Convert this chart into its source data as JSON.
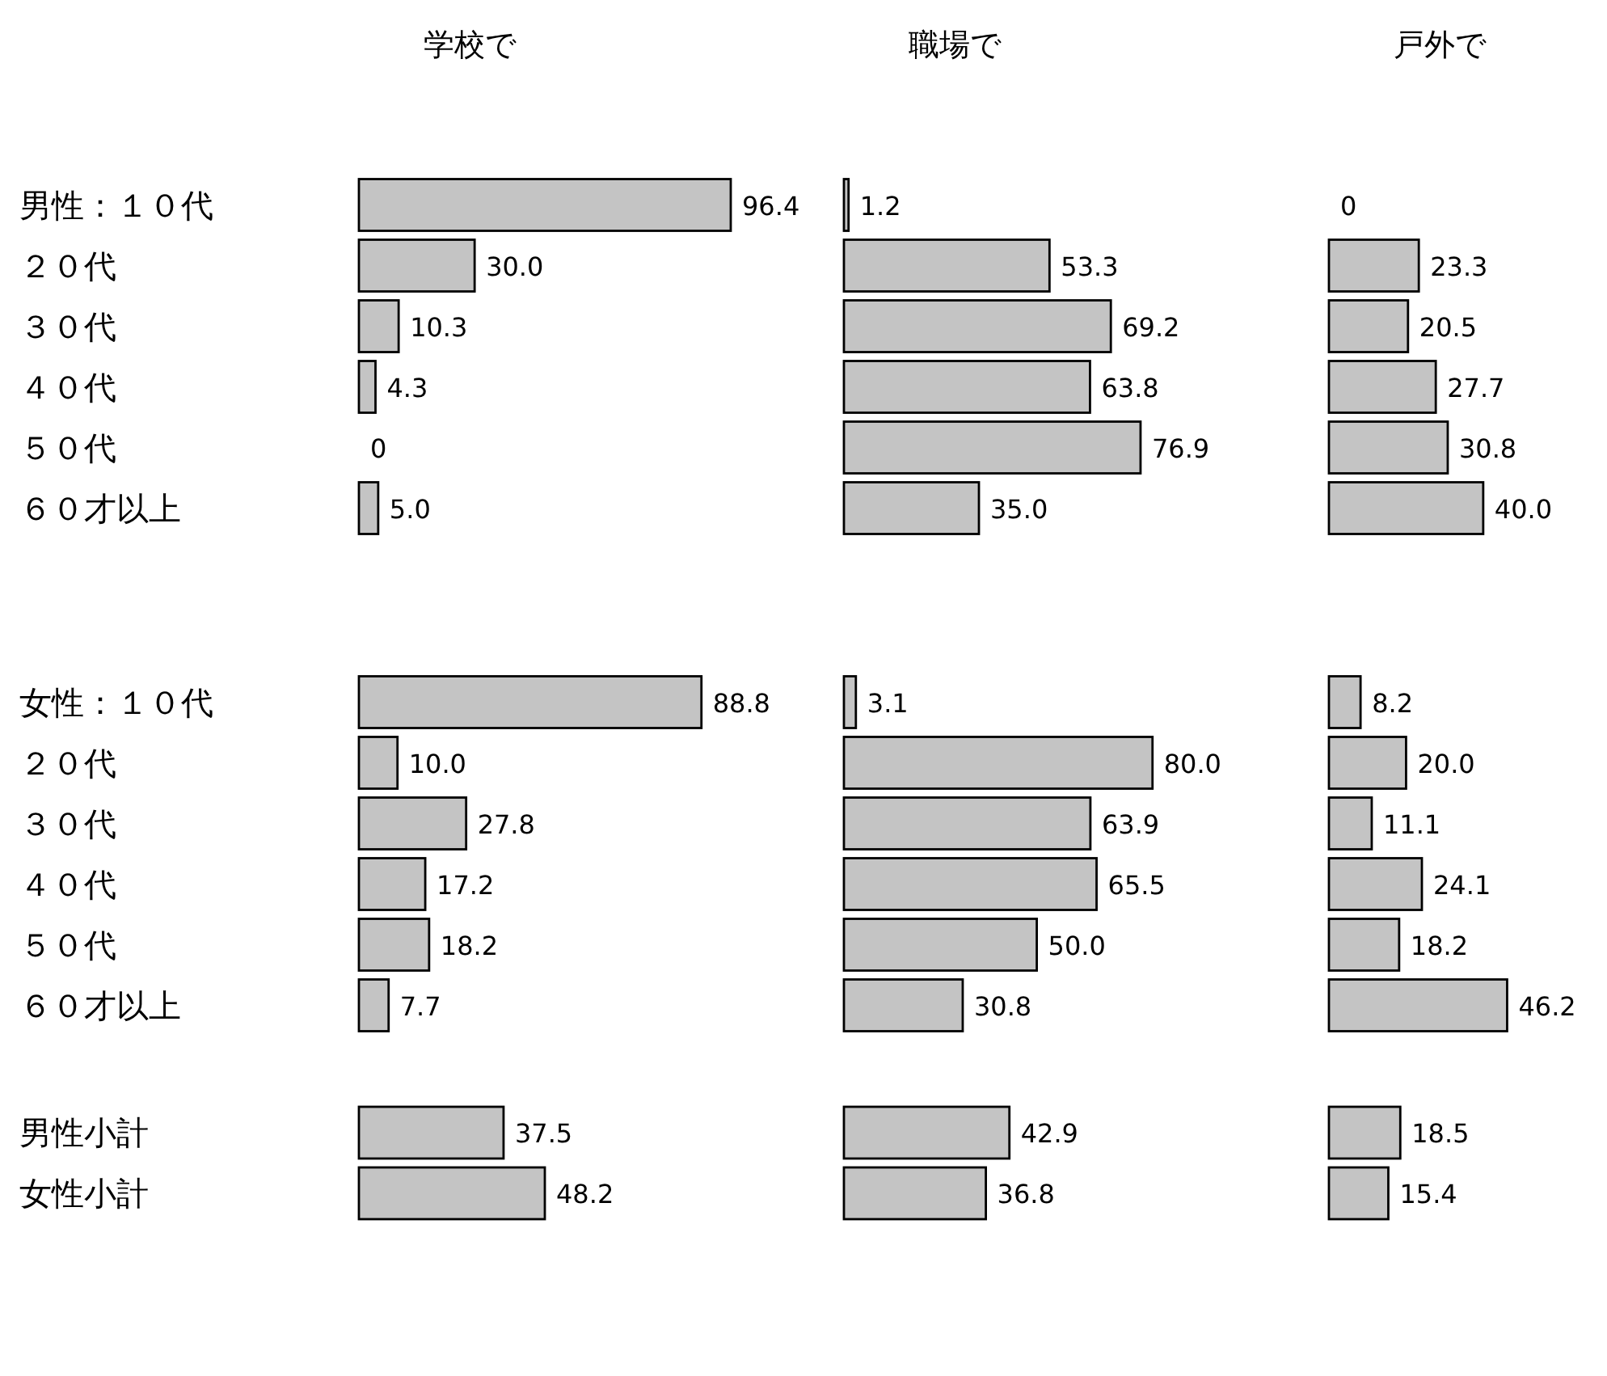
{
  "chart_data": [
    {
      "type": "bar",
      "orientation": "horizontal",
      "title": "学校で",
      "tick_labels": "y",
      "color": "#c4c4c4",
      "categories": [
        "男性：１０代",
        "２０代",
        "３０代",
        "４０代",
        "５０代",
        "６０才以上",
        null,
        null,
        "女性：１０代",
        "２０代",
        "３０代",
        "４０代",
        "５０代",
        "６０才以上",
        null,
        "男性小計",
        "女性小計"
      ],
      "values": [
        96.4,
        30.0,
        10.3,
        4.3,
        0,
        5.0,
        null,
        null,
        88.8,
        10.0,
        27.8,
        17.2,
        18.2,
        7.7,
        null,
        37.5,
        48.2
      ],
      "value_labels": [
        "96.4",
        "30.0",
        "10.3",
        "4.3",
        "0",
        "5.0",
        null,
        null,
        "88.8",
        "10.0",
        "27.8",
        "17.2",
        "18.2",
        "7.7",
        null,
        "37.5",
        "48.2"
      ]
    },
    {
      "type": "bar",
      "orientation": "horizontal",
      "title": "職場で",
      "tick_labels": false,
      "color": "#c4c4c4",
      "values": [
        1.2,
        53.3,
        69.2,
        63.8,
        76.9,
        35.0,
        null,
        null,
        3.1,
        80.0,
        63.9,
        65.5,
        50.0,
        30.8,
        null,
        42.9,
        36.8
      ],
      "value_labels": [
        "1.2",
        "53.3",
        "69.2",
        "63.8",
        "76.9",
        "35.0",
        null,
        null,
        "3.1",
        "80.0",
        "63.9",
        "65.5",
        "50.0",
        "30.8",
        null,
        "42.9",
        "36.8"
      ]
    },
    {
      "type": "bar",
      "orientation": "horizontal",
      "title": "戸外で",
      "tick_labels": false,
      "color": "#c4c4c4",
      "values": [
        0,
        23.3,
        20.5,
        27.7,
        30.8,
        40.0,
        null,
        null,
        8.2,
        20.0,
        11.1,
        24.1,
        18.2,
        46.2,
        null,
        18.5,
        15.4
      ],
      "value_labels": [
        "0",
        "23.3",
        "20.5",
        "27.7",
        "30.8",
        "40.0",
        null,
        null,
        "8.2",
        "20.0",
        "11.1",
        "24.1",
        "18.2",
        "46.2",
        null,
        "18.5",
        "15.4"
      ]
    }
  ]
}
